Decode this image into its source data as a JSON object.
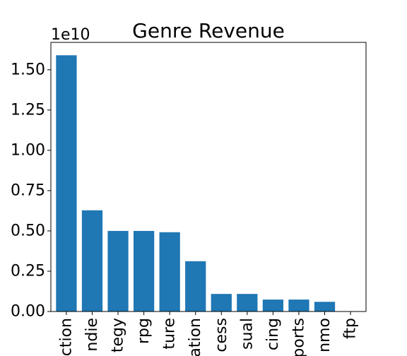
{
  "chart_data": {
    "type": "bar",
    "title": "Genre Revenue",
    "xlabel": "",
    "ylabel": "",
    "scale_label": "1e10",
    "categories": [
      "action",
      "indie",
      "strategy",
      "rpg",
      "adventure",
      "simulation",
      "early access",
      "casual",
      "racing",
      "sports",
      "mmo",
      "ftp"
    ],
    "tick_labels_visible": [
      "ction",
      "ndie",
      "tegy",
      "rpg",
      "ture",
      "ation",
      "cess",
      "sual",
      "cing",
      "ports",
      "nmo",
      "ftp"
    ],
    "values": [
      15900000000,
      6280000000,
      5000000000,
      5000000000,
      4920000000,
      3120000000,
      1090000000,
      1090000000,
      740000000,
      740000000,
      600000000,
      0
    ],
    "ylim": [
      0,
      16700000000
    ],
    "yticks": [
      0,
      2500000000,
      5000000000,
      7500000000,
      10000000000,
      12500000000,
      15000000000
    ],
    "ytick_labels": [
      "0.00",
      "0.25",
      "0.50",
      "0.75",
      "1.00",
      "1.25",
      "1.50"
    ],
    "grid": false,
    "legend": "none",
    "bar_color": "#1f77b4"
  }
}
